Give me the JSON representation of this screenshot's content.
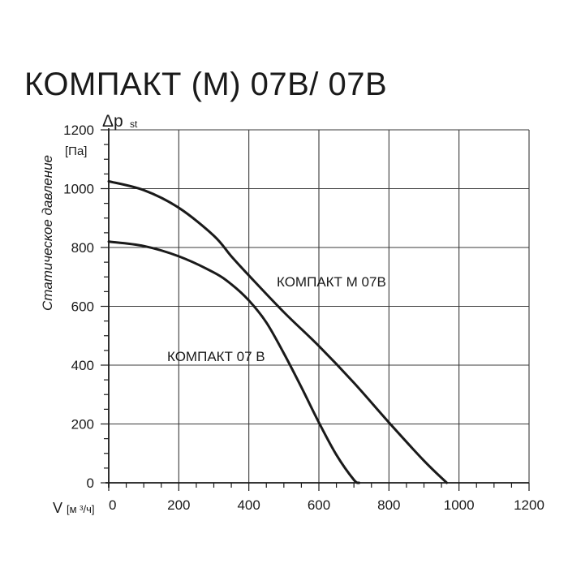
{
  "chart_data": {
    "type": "line",
    "title": "КОМПАКТ (М) 07В/ 07В",
    "ylabel": "Статическое давление",
    "y_symbol": "Δp",
    "y_symbol_sub": "st",
    "y_unit": "[Па]",
    "xlabel": "V",
    "x_unit": "[м ³/ч]",
    "xlim": [
      0,
      1200
    ],
    "ylim": [
      0,
      1200
    ],
    "x_ticks": [
      0,
      200,
      400,
      600,
      800,
      1000,
      1200
    ],
    "y_ticks": [
      0,
      200,
      400,
      600,
      800,
      1000,
      1200
    ],
    "grid": true,
    "series": [
      {
        "name": "КОМПАКТ М 07В",
        "x": [
          0,
          100,
          200,
          300,
          350,
          400,
          500,
          600,
          700,
          800,
          900,
          965
        ],
        "y": [
          1025,
          995,
          935,
          840,
          770,
          705,
          580,
          465,
          340,
          205,
          75,
          0
        ]
      },
      {
        "name": "КОМПАКТ 07 В",
        "x": [
          0,
          100,
          200,
          300,
          350,
          400,
          450,
          500,
          550,
          600,
          650,
          700,
          715
        ],
        "y": [
          820,
          805,
          770,
          715,
          675,
          620,
          545,
          440,
          325,
          205,
          95,
          10,
          0
        ]
      }
    ]
  }
}
